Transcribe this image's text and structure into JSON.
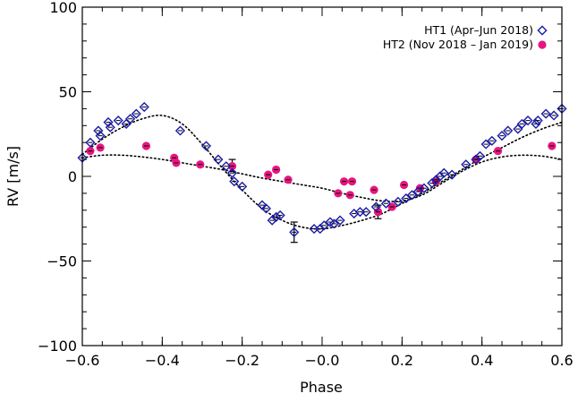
{
  "chart_data": {
    "type": "scatter",
    "xlabel": "Phase",
    "ylabel": "RV [m/s]",
    "xlim": [
      -0.6,
      0.6
    ],
    "ylim": [
      -100,
      100
    ],
    "xticks": [
      -0.6,
      -0.4,
      -0.2,
      0.0,
      0.2,
      0.4,
      0.6
    ],
    "xtick_labels": [
      "−0.6",
      "−0.4",
      "−0.2",
      "−0.0",
      "0.2",
      "0.4",
      "0.6"
    ],
    "yticks": [
      -100,
      -50,
      0,
      50,
      100
    ],
    "ytick_labels": [
      "−100",
      "−50",
      "0",
      "50",
      "100"
    ],
    "legend_position": "top-right",
    "grid": false,
    "series": [
      {
        "name": "HT1 (Apr–Jun 2018)",
        "marker": "diamond-open",
        "color": "#1a1aa6",
        "points": [
          [
            -0.6,
            11
          ],
          [
            -0.58,
            20
          ],
          [
            -0.56,
            27
          ],
          [
            -0.555,
            24
          ],
          [
            -0.535,
            32
          ],
          [
            -0.53,
            29
          ],
          [
            -0.51,
            33
          ],
          [
            -0.49,
            31
          ],
          [
            -0.48,
            34
          ],
          [
            -0.465,
            37
          ],
          [
            -0.445,
            41
          ],
          [
            -0.355,
            27
          ],
          [
            -0.29,
            18
          ],
          [
            -0.26,
            10
          ],
          [
            -0.24,
            6
          ],
          [
            -0.225,
            2
          ],
          [
            -0.22,
            -3
          ],
          [
            -0.2,
            -6
          ],
          [
            -0.15,
            -17
          ],
          [
            -0.14,
            -19
          ],
          [
            -0.125,
            -26
          ],
          [
            -0.115,
            -24
          ],
          [
            -0.105,
            -23
          ],
          [
            -0.07,
            -33
          ],
          [
            -0.02,
            -31
          ],
          [
            -0.005,
            -31
          ],
          [
            0.005,
            -29
          ],
          [
            0.02,
            -27
          ],
          [
            0.03,
            -28
          ],
          [
            0.045,
            -26
          ],
          [
            0.08,
            -22
          ],
          [
            0.095,
            -21
          ],
          [
            0.11,
            -21
          ],
          [
            0.135,
            -18
          ],
          [
            0.16,
            -16
          ],
          [
            0.19,
            -15
          ],
          [
            0.21,
            -13
          ],
          [
            0.225,
            -11
          ],
          [
            0.24,
            -9
          ],
          [
            0.255,
            -7
          ],
          [
            0.275,
            -4
          ],
          [
            0.285,
            -2
          ],
          [
            0.295,
            0
          ],
          [
            0.305,
            2
          ],
          [
            0.325,
            1
          ],
          [
            0.36,
            7
          ],
          [
            0.385,
            10
          ],
          [
            0.395,
            12
          ],
          [
            0.41,
            19
          ],
          [
            0.425,
            21
          ],
          [
            0.45,
            24
          ],
          [
            0.465,
            27
          ],
          [
            0.49,
            28
          ],
          [
            0.5,
            31
          ],
          [
            0.515,
            33
          ],
          [
            0.535,
            31
          ],
          [
            0.54,
            33
          ],
          [
            0.56,
            37
          ],
          [
            0.58,
            36
          ],
          [
            0.6,
            40
          ]
        ]
      },
      {
        "name": "HT2 (Nov 2018 – Jan 2019)",
        "marker": "circle-filled",
        "color": "#e8157f",
        "points": [
          [
            -0.58,
            15
          ],
          [
            -0.555,
            17
          ],
          [
            -0.44,
            18
          ],
          [
            -0.37,
            11
          ],
          [
            -0.365,
            8
          ],
          [
            -0.305,
            7
          ],
          [
            -0.225,
            6
          ],
          [
            -0.135,
            1
          ],
          [
            -0.115,
            4
          ],
          [
            -0.085,
            -2
          ],
          [
            0.04,
            -10
          ],
          [
            0.055,
            -3
          ],
          [
            0.07,
            -11
          ],
          [
            0.075,
            -3
          ],
          [
            0.13,
            -8
          ],
          [
            0.14,
            -21
          ],
          [
            0.175,
            -18
          ],
          [
            0.205,
            -5
          ],
          [
            0.245,
            -7
          ],
          [
            0.285,
            -3
          ],
          [
            0.385,
            10
          ],
          [
            0.44,
            15
          ],
          [
            0.575,
            18
          ]
        ]
      }
    ],
    "errorbars": [
      {
        "x": -0.07,
        "y": -33,
        "low": -39,
        "high": -27
      },
      {
        "x": 0.14,
        "y": -21,
        "low": -25,
        "high": -17
      },
      {
        "x": -0.225,
        "y": 6,
        "low": 3,
        "high": 10
      }
    ],
    "fits": [
      {
        "for": "HT1 (Apr–Jun 2018)",
        "style": "dotted",
        "x": [
          -0.6,
          -0.55,
          -0.5,
          -0.45,
          -0.4,
          -0.35,
          -0.3,
          -0.25,
          -0.2,
          -0.15,
          -0.1,
          -0.05,
          0.0,
          0.05,
          0.1,
          0.15,
          0.2,
          0.25,
          0.3,
          0.35,
          0.4,
          0.45,
          0.5,
          0.55,
          0.6
        ],
        "y": [
          13,
          22,
          29,
          34,
          36,
          31,
          19,
          5,
          -8,
          -19,
          -26,
          -30,
          -31,
          -29,
          -26,
          -22,
          -16,
          -10,
          -3,
          4,
          11,
          17,
          23,
          28,
          32
        ]
      },
      {
        "for": "HT2 (Nov 2018 – Jan 2019)",
        "style": "dotted",
        "x": [
          -0.6,
          -0.55,
          -0.5,
          -0.45,
          -0.4,
          -0.35,
          -0.3,
          -0.25,
          -0.2,
          -0.15,
          -0.1,
          -0.05,
          0.0,
          0.05,
          0.1,
          0.15,
          0.2,
          0.25,
          0.3,
          0.35,
          0.4,
          0.45,
          0.5,
          0.55,
          0.6
        ],
        "y": [
          11,
          12.5,
          12.5,
          11.5,
          10,
          8,
          6,
          4,
          1.5,
          -1,
          -3,
          -5,
          -7,
          -10,
          -12.5,
          -14.5,
          -14.5,
          -11,
          -4,
          3,
          8.5,
          11.5,
          12.5,
          12,
          10
        ]
      }
    ]
  }
}
